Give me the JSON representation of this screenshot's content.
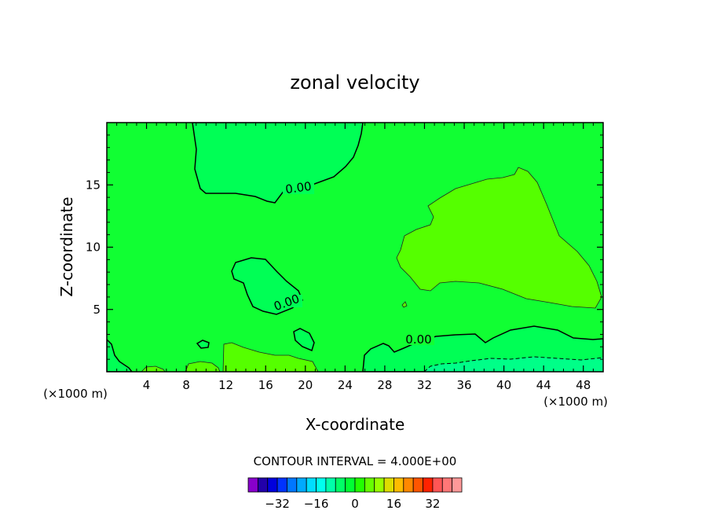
{
  "chart_data": {
    "type": "contour",
    "title": "zonal velocity",
    "xlabel": "X-coordinate",
    "ylabel": "Z-coordinate",
    "x_unit_label": "(×1000 m)",
    "xlim": [
      0,
      50
    ],
    "ylim": [
      0,
      20
    ],
    "x_ticks": [
      4,
      8,
      12,
      16,
      20,
      24,
      28,
      32,
      36,
      40,
      44,
      48
    ],
    "y_ticks": [
      5,
      10,
      15
    ],
    "contour_interval_text": "CONTOUR INTERVAL = 4.000E+00",
    "contour_interval": 4.0,
    "zero_contour_labels": [
      "0.00",
      "0.00",
      "0.00"
    ],
    "colorbar": {
      "tick_labels": [
        "−32",
        "−16",
        "0",
        "16",
        "32"
      ],
      "tick_values": [
        -32,
        -16,
        0,
        16,
        32
      ],
      "colors": [
        "#8800cc",
        "#2200aa",
        "#0000dd",
        "#0033ff",
        "#0077ff",
        "#00aaff",
        "#00ddff",
        "#00ffee",
        "#00ffaa",
        "#00ff66",
        "#00ff33",
        "#22ff00",
        "#66ff00",
        "#99ff00",
        "#dddd00",
        "#ffbb00",
        "#ff8800",
        "#ff5500",
        "#ff2200",
        "#ff5555",
        "#ff7777",
        "#ff9999"
      ]
    },
    "regions": [
      {
        "name": "background",
        "range": "0 to 4",
        "color": "#11ff33"
      },
      {
        "name": "upper-left-negative",
        "range": "-4 to 0",
        "color": "#00ff55"
      },
      {
        "name": "upper-right-positive",
        "range": "4 to 8",
        "color": "#55ff00"
      },
      {
        "name": "mid-left-negative",
        "range": "-4 to 0",
        "color": "#00ff55"
      },
      {
        "name": "lower-right-negative",
        "range": "-4 to 0",
        "color": "#00ff55"
      },
      {
        "name": "bottom-right-negative",
        "range": "-8 to -4",
        "color": "#00ff88"
      }
    ]
  }
}
